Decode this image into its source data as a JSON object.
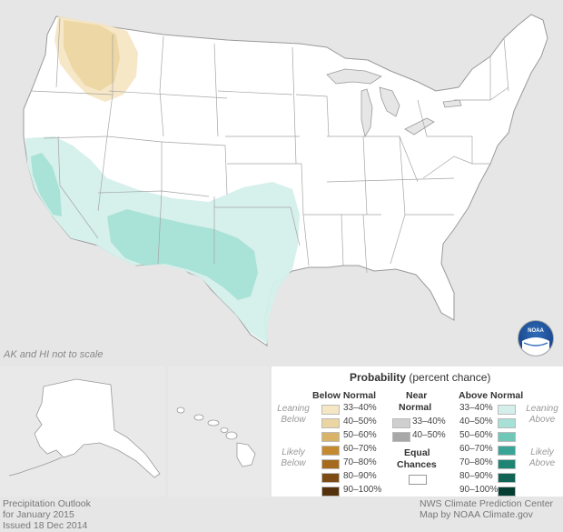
{
  "map_note": "AK and HI not to scale",
  "legend": {
    "title_bold": "Probability",
    "title_rest": " (percent chance)",
    "below_header": "Below Normal",
    "near_header_1": "Near",
    "near_header_2": "Normal",
    "above_header": "Above Normal",
    "equal_1": "Equal",
    "equal_2": "Chances",
    "leaning_below_1": "Leaning",
    "leaning_below_2": "Below",
    "likely_below_1": "Likely",
    "likely_below_2": "Below",
    "leaning_above_1": "Leaning",
    "leaning_above_2": "Above",
    "likely_above_1": "Likely",
    "likely_above_2": "Above",
    "below": [
      {
        "label": "33–40%",
        "color": "#f5e6c4"
      },
      {
        "label": "40–50%",
        "color": "#ebd6a3"
      },
      {
        "label": "50–60%",
        "color": "#d9b368"
      },
      {
        "label": "60–70%",
        "color": "#c48a2f"
      },
      {
        "label": "70–80%",
        "color": "#a66a1f"
      },
      {
        "label": "80–90%",
        "color": "#7d4c14"
      },
      {
        "label": "90–100%",
        "color": "#54300b"
      }
    ],
    "near": [
      {
        "label": "33–40%",
        "color": "#cfcfcf"
      },
      {
        "label": "40–50%",
        "color": "#a8a8a8"
      }
    ],
    "above": [
      {
        "label": "33–40%",
        "color": "#d4efeb"
      },
      {
        "label": "40–50%",
        "color": "#a6e0d6"
      },
      {
        "label": "50–60%",
        "color": "#6ec7b7"
      },
      {
        "label": "60–70%",
        "color": "#3aa596"
      },
      {
        "label": "70–80%",
        "color": "#1f8474"
      },
      {
        "label": "80–90%",
        "color": "#116356"
      },
      {
        "label": "90–100%",
        "color": "#063d33"
      }
    ]
  },
  "footer": {
    "left_1": "Precipitation Outlook",
    "left_2": "for January 2015",
    "left_3": "Issued 18 Dec 2014",
    "right_1": "NWS Climate Prediction Center",
    "right_2": "Map by NOAA Climate.gov"
  },
  "logo_text": "NOAA"
}
